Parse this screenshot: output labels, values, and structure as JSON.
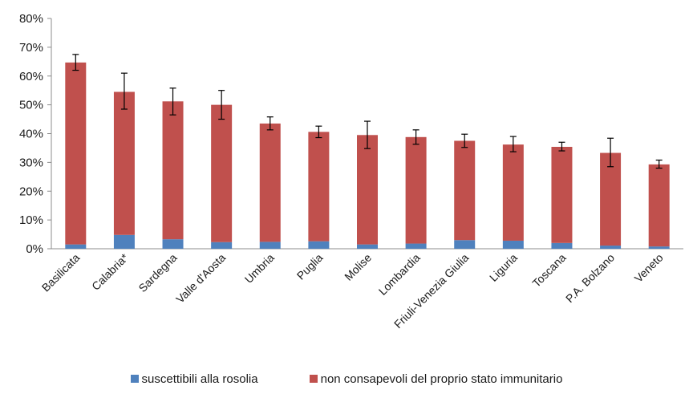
{
  "chart_data": {
    "type": "bar",
    "stacked": true,
    "title": "",
    "xlabel": "",
    "ylabel": "",
    "ylim": [
      0,
      80
    ],
    "yticks": [
      "0%",
      "10%",
      "20%",
      "30%",
      "40%",
      "50%",
      "60%",
      "70%",
      "80%"
    ],
    "grid": false,
    "legend_position": "bottom",
    "categories": [
      "Basilicata",
      "Calabria*",
      "Sardegna",
      "Valle d'Aosta",
      "Umbria",
      "Puglia",
      "Molise",
      "Lombardia",
      "Friuli-Venezia Giulia",
      "Liguria",
      "Toscana",
      "P.A. Bolzano",
      "Veneto"
    ],
    "series": [
      {
        "name": "suscettibili alla rosolia",
        "color": "#4f81bd",
        "values": [
          1.5,
          4.8,
          3.3,
          2.3,
          2.4,
          2.6,
          1.5,
          1.8,
          3.0,
          2.8,
          2.0,
          1.1,
          0.8
        ]
      },
      {
        "name": "non consapevoli del proprio stato immunitario",
        "color": "#c0504d",
        "values": [
          63.2,
          49.7,
          47.9,
          47.7,
          41.1,
          38.0,
          38.0,
          37.0,
          34.5,
          33.4,
          33.4,
          32.2,
          28.5
        ]
      }
    ],
    "totals": [
      64.7,
      54.5,
      51.2,
      50.0,
      43.5,
      40.6,
      39.5,
      38.8,
      37.5,
      36.2,
      35.4,
      33.3,
      29.3
    ],
    "error_low": [
      62.0,
      48.5,
      46.5,
      45.0,
      41.3,
      38.6,
      34.8,
      36.3,
      35.2,
      33.7,
      34.0,
      28.5,
      28.0
    ],
    "error_high": [
      67.5,
      61.0,
      55.8,
      55.0,
      45.8,
      42.6,
      44.3,
      41.3,
      39.8,
      39.0,
      37.0,
      38.4,
      30.8
    ]
  }
}
